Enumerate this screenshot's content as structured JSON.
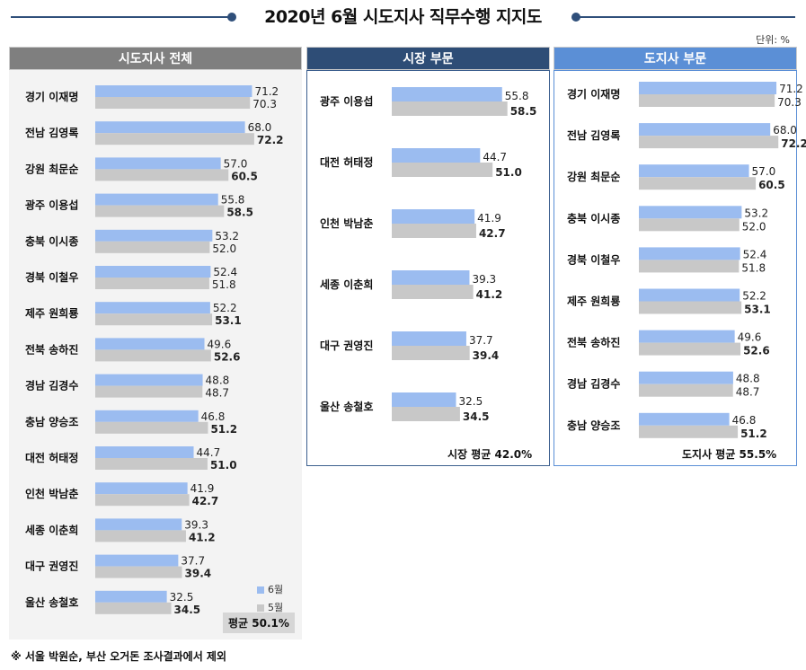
{
  "title": "2020년 6월 시도지사 직무수행 지지도",
  "unit": "단위: %",
  "footnote": "※ 서울 박원순, 부산 오거돈 조사결과에서 제외",
  "colors": {
    "june": "#9bbcf0",
    "may": "#c8c8c8",
    "head_all": "#7f7f7f",
    "head_mayor": "#2e4d76",
    "head_gov": "#5b8fd6",
    "title_line": "#2f4f7a"
  },
  "legend": {
    "june": "6월",
    "may": "5월"
  },
  "chart_data": [
    {
      "type": "bar",
      "title": "시도지사 전체",
      "series": [
        {
          "name": "6월"
        },
        {
          "name": "5월"
        }
      ],
      "average_label": "평균 50.1%",
      "rows": [
        {
          "label": "경기 이재명",
          "june": 71.2,
          "may": 70.3
        },
        {
          "label": "전남 김영록",
          "june": 68.0,
          "may": 72.2
        },
        {
          "label": "강원 최문순",
          "june": 57.0,
          "may": 60.5
        },
        {
          "label": "광주 이용섭",
          "june": 55.8,
          "may": 58.5
        },
        {
          "label": "충북 이시종",
          "june": 53.2,
          "may": 52.0
        },
        {
          "label": "경북 이철우",
          "june": 52.4,
          "may": 51.8
        },
        {
          "label": "제주 원희룡",
          "june": 52.2,
          "may": 53.1
        },
        {
          "label": "전북 송하진",
          "june": 49.6,
          "may": 52.6
        },
        {
          "label": "경남 김경수",
          "june": 48.8,
          "may": 48.7
        },
        {
          "label": "충남 양승조",
          "june": 46.8,
          "may": 51.2
        },
        {
          "label": "대전 허태정",
          "june": 44.7,
          "may": 51.0
        },
        {
          "label": "인천 박남춘",
          "june": 41.9,
          "may": 42.7
        },
        {
          "label": "세종 이춘희",
          "june": 39.3,
          "may": 41.2
        },
        {
          "label": "대구 권영진",
          "june": 37.7,
          "may": 39.4
        },
        {
          "label": "울산 송철호",
          "june": 32.5,
          "may": 34.5
        }
      ]
    },
    {
      "type": "bar",
      "title": "시장 부문",
      "average_label": "시장 평균 42.0%",
      "rows": [
        {
          "label": "광주 이용섭",
          "june": 55.8,
          "may": 58.5
        },
        {
          "label": "대전 허태정",
          "june": 44.7,
          "may": 51.0
        },
        {
          "label": "인천 박남춘",
          "june": 41.9,
          "may": 42.7
        },
        {
          "label": "세종 이춘희",
          "june": 39.3,
          "may": 41.2
        },
        {
          "label": "대구 권영진",
          "june": 37.7,
          "may": 39.4
        },
        {
          "label": "울산 송철호",
          "june": 32.5,
          "may": 34.5
        }
      ]
    },
    {
      "type": "bar",
      "title": "도지사 부문",
      "average_label": "도지사 평균 55.5%",
      "rows": [
        {
          "label": "경기 이재명",
          "june": 71.2,
          "may": 70.3
        },
        {
          "label": "전남 김영록",
          "june": 68.0,
          "may": 72.2
        },
        {
          "label": "강원 최문순",
          "june": 57.0,
          "may": 60.5
        },
        {
          "label": "충북 이시종",
          "june": 53.2,
          "may": 52.0
        },
        {
          "label": "경북 이철우",
          "june": 52.4,
          "may": 51.8
        },
        {
          "label": "제주 원희룡",
          "june": 52.2,
          "may": 53.1
        },
        {
          "label": "전북 송하진",
          "june": 49.6,
          "may": 52.6
        },
        {
          "label": "경남 김경수",
          "june": 48.8,
          "may": 48.7
        },
        {
          "label": "충남 양승조",
          "june": 46.8,
          "may": 51.2
        }
      ]
    }
  ]
}
